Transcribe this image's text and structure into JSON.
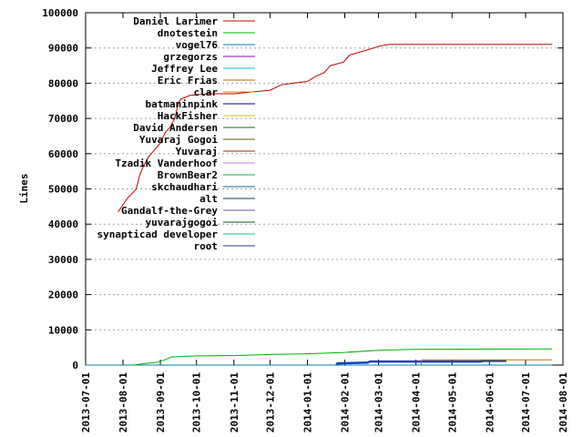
{
  "chart_data": {
    "type": "line",
    "title": "",
    "xlabel": "",
    "ylabel": "Lines",
    "ylim": [
      0,
      100000
    ],
    "xlim": [
      "2013-07-01",
      "2014-08-01"
    ],
    "grid": true,
    "legend_position": "top-left",
    "y_ticks": [
      "0",
      "10000",
      "20000",
      "30000",
      "40000",
      "50000",
      "60000",
      "70000",
      "80000",
      "90000",
      "100000"
    ],
    "x_ticks": [
      "2013-07-01",
      "2013-08-01",
      "2013-09-01",
      "2013-10-01",
      "2013-11-01",
      "2013-12-01",
      "2014-01-01",
      "2014-02-01",
      "2014-03-01",
      "2014-04-01",
      "2014-05-01",
      "2014-06-01",
      "2014-07-01",
      "2014-08-01"
    ],
    "series": [
      {
        "name": "Daniel Larimer",
        "color": "#c00000",
        "points": [
          [
            "2013-07-28",
            43500
          ],
          [
            "2013-08-01",
            45500
          ],
          [
            "2013-08-05",
            47500
          ],
          [
            "2013-08-08",
            48500
          ],
          [
            "2013-08-12",
            50000
          ],
          [
            "2013-08-15",
            54000
          ],
          [
            "2013-08-18",
            56500
          ],
          [
            "2013-08-22",
            59000
          ],
          [
            "2013-08-27",
            61000
          ],
          [
            "2013-09-01",
            63000
          ],
          [
            "2013-09-05",
            66000
          ],
          [
            "2013-09-09",
            67500
          ],
          [
            "2013-09-13",
            70000
          ],
          [
            "2013-09-16",
            74500
          ],
          [
            "2013-09-18",
            75500
          ],
          [
            "2013-09-22",
            76000
          ],
          [
            "2013-09-25",
            76500
          ],
          [
            "2013-10-10",
            77000
          ],
          [
            "2013-11-01",
            77000
          ],
          [
            "2013-11-15",
            77500
          ],
          [
            "2013-12-01",
            78000
          ],
          [
            "2013-12-10",
            79500
          ],
          [
            "2013-12-20",
            80000
          ],
          [
            "2014-01-01",
            80500
          ],
          [
            "2014-01-08",
            82000
          ],
          [
            "2014-01-15",
            83000
          ],
          [
            "2014-01-20",
            85000
          ],
          [
            "2014-01-31",
            86000
          ],
          [
            "2014-02-05",
            88000
          ],
          [
            "2014-02-15",
            89000
          ],
          [
            "2014-02-25",
            90000
          ],
          [
            "2014-03-01",
            90500
          ],
          [
            "2014-03-10",
            91000
          ],
          [
            "2014-07-23",
            91000
          ]
        ]
      },
      {
        "name": "dnotestein",
        "color": "#00b000",
        "points": [
          [
            "2013-08-10",
            0
          ],
          [
            "2013-08-20",
            500
          ],
          [
            "2013-08-28",
            700
          ],
          [
            "2013-09-05",
            1500
          ],
          [
            "2013-09-10",
            2300
          ],
          [
            "2013-10-01",
            2600
          ],
          [
            "2013-11-01",
            2700
          ],
          [
            "2013-12-01",
            3000
          ],
          [
            "2014-01-01",
            3200
          ],
          [
            "2014-02-01",
            3600
          ],
          [
            "2014-03-01",
            4200
          ],
          [
            "2014-04-01",
            4500
          ],
          [
            "2014-07-23",
            4600
          ]
        ]
      },
      {
        "name": "vogel76",
        "color": "#0080a0",
        "points": [
          [
            "2013-07-01",
            0
          ],
          [
            "2014-07-23",
            0
          ]
        ]
      },
      {
        "name": "grzegorzs",
        "color": "#9000c0",
        "points": [
          [
            "2013-07-01",
            0
          ],
          [
            "2014-07-23",
            0
          ]
        ]
      },
      {
        "name": "Jeffrey Lee",
        "color": "#00c0d0",
        "points": [
          [
            "2013-07-01",
            0
          ],
          [
            "2014-07-23",
            0
          ]
        ]
      },
      {
        "name": "Eric Frias",
        "color": "#c07000",
        "points": [
          [
            "2014-04-05",
            0
          ],
          [
            "2014-04-06",
            1500
          ],
          [
            "2014-07-23",
            1500
          ]
        ]
      },
      {
        "name": "clar",
        "color": "#e08000",
        "points": [
          [
            "2013-07-01",
            0
          ],
          [
            "2014-07-23",
            0
          ]
        ]
      },
      {
        "name": "batmaninpink",
        "color": "#000080",
        "points": [
          [
            "2013-07-01",
            0
          ],
          [
            "2014-07-23",
            0
          ]
        ]
      },
      {
        "name": "HackFisher",
        "color": "#d0c000",
        "points": [
          [
            "2013-07-01",
            0
          ],
          [
            "2014-07-23",
            0
          ]
        ]
      },
      {
        "name": "David Andersen",
        "color": "#007000",
        "points": [
          [
            "2013-07-01",
            0
          ],
          [
            "2014-07-23",
            0
          ]
        ]
      },
      {
        "name": "Yuvaraj Gogoi",
        "color": "#506000",
        "points": [
          [
            "2013-07-01",
            0
          ],
          [
            "2014-07-23",
            0
          ]
        ]
      },
      {
        "name": "Yuvaraj",
        "color": "#903000",
        "points": [
          [
            "2013-07-01",
            0
          ],
          [
            "2014-07-23",
            0
          ]
        ]
      },
      {
        "name": "Tzadik Vanderhoof",
        "color": "#c080f0",
        "points": [
          [
            "2013-07-01",
            0
          ],
          [
            "2014-07-23",
            0
          ]
        ]
      },
      {
        "name": "BrownBear2",
        "color": "#00b060",
        "points": [
          [
            "2013-07-01",
            0
          ],
          [
            "2014-07-23",
            0
          ]
        ]
      },
      {
        "name": "skchaudhari",
        "color": "#007090",
        "points": [
          [
            "2013-07-01",
            0
          ],
          [
            "2014-07-23",
            0
          ]
        ]
      },
      {
        "name": "alt",
        "color": "#004070",
        "points": [
          [
            "2013-07-01",
            0
          ],
          [
            "2014-07-23",
            0
          ]
        ]
      },
      {
        "name": "Gandalf-the-Grey",
        "color": "#7050b0",
        "points": [
          [
            "2013-07-01",
            0
          ],
          [
            "2014-07-23",
            0
          ]
        ]
      },
      {
        "name": "yuvarajgogoi",
        "color": "#006020",
        "points": [
          [
            "2013-07-01",
            0
          ],
          [
            "2014-07-23",
            0
          ]
        ]
      },
      {
        "name": "synapticad developer",
        "color": "#00d080",
        "points": [
          [
            "2013-07-01",
            0
          ],
          [
            "2014-07-23",
            0
          ]
        ]
      },
      {
        "name": "root",
        "color": "#204080",
        "points": [
          [
            "2013-07-01",
            0
          ],
          [
            "2014-07-23",
            0
          ]
        ]
      },
      {
        "name": "",
        "color": "#1040c0",
        "points": [
          [
            "2014-01-25",
            0
          ],
          [
            "2014-01-26",
            500
          ],
          [
            "2014-02-20",
            700
          ],
          [
            "2014-02-22",
            1000
          ],
          [
            "2014-05-25",
            1000
          ],
          [
            "2014-05-27",
            1200
          ],
          [
            "2014-06-15",
            1200
          ]
        ]
      }
    ]
  }
}
